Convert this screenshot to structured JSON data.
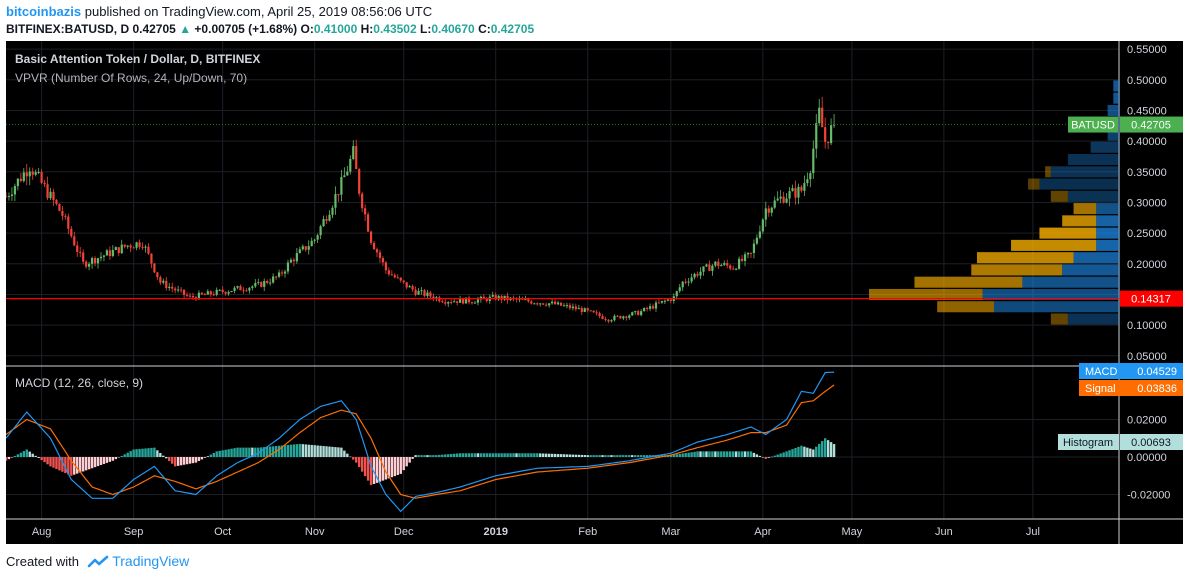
{
  "header": {
    "user": "bitcoinbazis",
    "published_text": "published on TradingView.com, April 25, 2019 08:56:06 UTC",
    "symbol": "BITFINEX:BATUSD, D",
    "last": "0.42705",
    "change_arrow": "▲",
    "change": "+0.00705 (+1.68%)",
    "o_label": "O:",
    "o": "0.41000",
    "h_label": "H:",
    "h": "0.43502",
    "l_label": "L:",
    "l": "0.40670",
    "c_label": "C:",
    "c": "0.42705"
  },
  "footer": {
    "created_with": "Created with",
    "brand": "TradingView",
    "logo_icon": "tradingview-logo-icon"
  },
  "colors": {
    "up": "#26a69a",
    "down": "#ef5350",
    "candle_up": "#66bb6a",
    "candle_down": "#f44336",
    "macd": "#2196f3",
    "signal": "#ff6d00",
    "hist_up_strong": "#26a69a",
    "hist_up_weak": "#b2dfdb",
    "hist_down_strong": "#ef5350",
    "hist_down_weak": "#ffcdd2",
    "vpvr_up": "#ffb300",
    "vpvr_down": "#1e88e5",
    "hline": "#ff0000",
    "price_tag": "#4caf50"
  },
  "chart_data": [
    {
      "type": "candlestick",
      "title": "Basic Attention Token / Dollar, D, BITFINEX",
      "indicator_label": "VPVR (Number Of Rows, 24, Up/Down, 70)",
      "ylim": [
        0.035,
        0.56
      ],
      "yticks": [
        "0.55000",
        "0.50000",
        "0.45000",
        "0.40000",
        "0.35000",
        "0.30000",
        "0.25000",
        "0.20000",
        "0.15000",
        "0.10000",
        "0.05000"
      ],
      "yticks_values": [
        0.55,
        0.5,
        0.45,
        0.4,
        0.35,
        0.3,
        0.25,
        0.2,
        0.15,
        0.1,
        0.05
      ],
      "x_tick_labels": [
        "Aug",
        "Sep",
        "Oct",
        "Nov",
        "Dec",
        "2019",
        "Feb",
        "Mar",
        "Apr",
        "May",
        "Jun",
        "Jul"
      ],
      "x_tick_dates": [
        "2018-08-01",
        "2018-09-01",
        "2018-10-01",
        "2018-11-01",
        "2018-12-01",
        "2019-01-01",
        "2019-02-01",
        "2019-03-01",
        "2019-04-01",
        "2019-05-01",
        "2019-06-01",
        "2019-07-01"
      ],
      "x_range": [
        "2018-07-20",
        "2019-07-30"
      ],
      "price_path_dates": [
        "2018-07-20",
        "2018-07-28",
        "2018-08-08",
        "2018-08-15",
        "2018-08-20",
        "2018-08-30",
        "2018-09-04",
        "2018-09-10",
        "2018-09-20",
        "2018-10-01",
        "2018-10-13",
        "2018-10-20",
        "2018-10-24",
        "2018-11-01",
        "2018-11-06",
        "2018-11-10",
        "2018-11-14",
        "2018-11-16",
        "2018-11-20",
        "2018-11-25",
        "2018-11-30",
        "2018-12-05",
        "2018-12-15",
        "2018-12-24",
        "2019-01-01",
        "2019-01-10",
        "2019-01-20",
        "2019-01-30",
        "2019-02-08",
        "2019-02-18",
        "2019-02-25",
        "2019-03-02",
        "2019-03-05",
        "2019-03-10",
        "2019-03-16",
        "2019-03-22",
        "2019-03-28",
        "2019-04-02",
        "2019-04-08",
        "2019-04-14",
        "2019-04-17",
        "2019-04-20",
        "2019-04-22",
        "2019-04-25"
      ],
      "price_path_values": [
        0.31,
        0.36,
        0.28,
        0.2,
        0.21,
        0.23,
        0.235,
        0.17,
        0.145,
        0.155,
        0.165,
        0.18,
        0.205,
        0.24,
        0.29,
        0.33,
        0.38,
        0.32,
        0.24,
        0.19,
        0.17,
        0.155,
        0.14,
        0.14,
        0.145,
        0.14,
        0.135,
        0.125,
        0.11,
        0.12,
        0.135,
        0.145,
        0.17,
        0.185,
        0.2,
        0.195,
        0.215,
        0.29,
        0.31,
        0.32,
        0.36,
        0.445,
        0.4,
        0.427
      ],
      "last_price_label": "BATUSD",
      "last_price": "0.42705",
      "last_price_value": 0.42705,
      "horizontal_line": {
        "label": "0.14317",
        "value": 0.14317
      },
      "vpvr": {
        "bin_lows": [
          0.1,
          0.12,
          0.14,
          0.16,
          0.18,
          0.2,
          0.22,
          0.24,
          0.26,
          0.28,
          0.3,
          0.32,
          0.34,
          0.36,
          0.38,
          0.4,
          0.42,
          0.44,
          0.46,
          0.48
        ],
        "up_volumes": [
          3,
          10,
          20,
          19,
          16,
          17,
          15,
          10,
          6,
          4,
          3,
          2,
          1,
          0,
          0,
          0,
          0,
          0,
          0,
          0
        ],
        "down_volumes": [
          9,
          22,
          24,
          17,
          10,
          8,
          4,
          4,
          4,
          4,
          9,
          14,
          12,
          9,
          5,
          2,
          4,
          2,
          1,
          1
        ],
        "up_share": [
          0.2,
          0.45,
          0.48,
          0.55,
          0.62,
          0.7,
          0.75,
          0.78,
          0.72,
          0.55,
          0.18,
          0.15,
          0.18,
          0.2,
          0.25,
          0.35,
          0.45,
          0.5,
          0.6,
          0.6
        ]
      }
    },
    {
      "type": "macd",
      "title": "MACD (12, 26, close, 9)",
      "ylim": [
        -0.032,
        0.048
      ],
      "yticks": [
        "0.02000",
        "0.00000",
        "-0.02000"
      ],
      "yticks_values": [
        0.02,
        0.0,
        -0.02
      ],
      "series": [
        {
          "name": "MACD",
          "last": "0.04529",
          "dates": [
            "2018-07-20",
            "2018-07-27",
            "2018-08-04",
            "2018-08-11",
            "2018-08-18",
            "2018-08-25",
            "2018-09-01",
            "2018-09-08",
            "2018-09-15",
            "2018-09-22",
            "2018-09-29",
            "2018-10-06",
            "2018-10-13",
            "2018-10-20",
            "2018-10-27",
            "2018-11-03",
            "2018-11-10",
            "2018-11-15",
            "2018-11-20",
            "2018-11-25",
            "2018-11-30",
            "2018-12-05",
            "2018-12-12",
            "2018-12-20",
            "2019-01-01",
            "2019-01-15",
            "2019-02-01",
            "2019-02-15",
            "2019-03-01",
            "2019-03-10",
            "2019-03-20",
            "2019-03-28",
            "2019-04-02",
            "2019-04-09",
            "2019-04-14",
            "2019-04-18",
            "2019-04-22",
            "2019-04-25"
          ],
          "values": [
            0.01,
            0.024,
            0.01,
            -0.012,
            -0.022,
            -0.022,
            -0.012,
            -0.005,
            -0.018,
            -0.02,
            -0.01,
            -0.003,
            0.002,
            0.01,
            0.02,
            0.027,
            0.03,
            0.02,
            -0.005,
            -0.02,
            -0.029,
            -0.021,
            -0.019,
            -0.016,
            -0.01,
            -0.006,
            -0.005,
            -0.002,
            0.002,
            0.008,
            0.012,
            0.016,
            0.012,
            0.02,
            0.035,
            0.034,
            0.045,
            0.0453
          ]
        },
        {
          "name": "Signal",
          "last": "0.03836",
          "dates": [
            "2018-07-20",
            "2018-07-27",
            "2018-08-04",
            "2018-08-11",
            "2018-08-18",
            "2018-08-25",
            "2018-09-01",
            "2018-09-08",
            "2018-09-15",
            "2018-09-22",
            "2018-09-29",
            "2018-10-06",
            "2018-10-13",
            "2018-10-20",
            "2018-10-27",
            "2018-11-03",
            "2018-11-10",
            "2018-11-15",
            "2018-11-20",
            "2018-11-25",
            "2018-11-30",
            "2018-12-05",
            "2018-12-12",
            "2018-12-20",
            "2019-01-01",
            "2019-01-15",
            "2019-02-01",
            "2019-02-15",
            "2019-03-01",
            "2019-03-10",
            "2019-03-20",
            "2019-03-28",
            "2019-04-02",
            "2019-04-09",
            "2019-04-14",
            "2019-04-18",
            "2019-04-22",
            "2019-04-25"
          ],
          "values": [
            0.012,
            0.02,
            0.015,
            -0.002,
            -0.016,
            -0.02,
            -0.016,
            -0.01,
            -0.013,
            -0.017,
            -0.013,
            -0.008,
            -0.003,
            0.004,
            0.013,
            0.021,
            0.025,
            0.023,
            0.01,
            -0.008,
            -0.02,
            -0.022,
            -0.02,
            -0.018,
            -0.012,
            -0.008,
            -0.006,
            -0.003,
            0.001,
            0.005,
            0.009,
            0.013,
            0.013,
            0.017,
            0.029,
            0.03,
            0.035,
            0.0384
          ]
        },
        {
          "name": "Histogram",
          "last": "0.00693"
        }
      ]
    }
  ]
}
